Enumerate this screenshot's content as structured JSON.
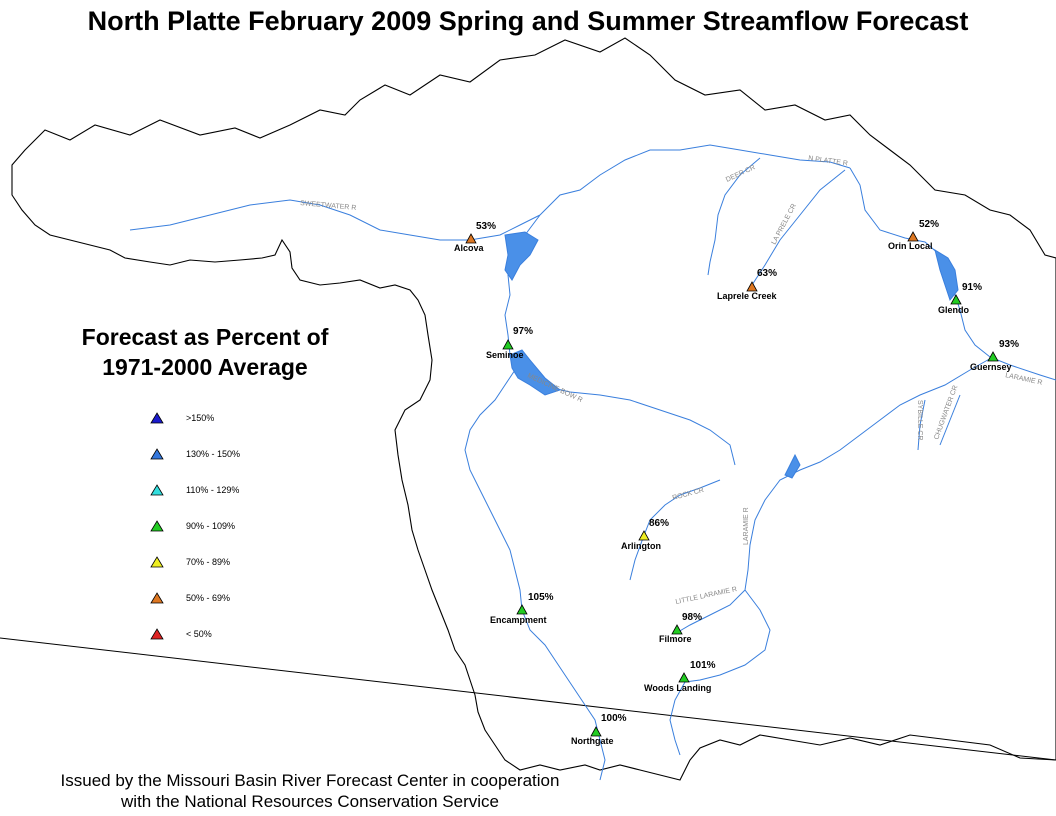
{
  "title": "North Platte February 2009 Spring and Summer Streamflow Forecast",
  "legend": {
    "title_line1": "Forecast as Percent of",
    "title_line2": "1971-2000 Average",
    "classes": [
      {
        "label": ">150%",
        "color": "#1a1acc"
      },
      {
        "label": "130% - 150%",
        "color": "#3377dd"
      },
      {
        "label": "110% - 129%",
        "color": "#33dddd"
      },
      {
        "label": "90% - 109%",
        "color": "#22cc22"
      },
      {
        "label": "70% - 89%",
        "color": "#eeee22"
      },
      {
        "label": "50% - 69%",
        "color": "#dd7722"
      },
      {
        "label": "< 50%",
        "color": "#dd2222"
      }
    ]
  },
  "stations": [
    {
      "name": "Alcova",
      "pct": "53%",
      "color": "#dd7722"
    },
    {
      "name": "Seminoe",
      "pct": "97%",
      "color": "#22cc22"
    },
    {
      "name": "Laprele Creek",
      "pct": "63%",
      "color": "#dd7722"
    },
    {
      "name": "Orin Local",
      "pct": "52%",
      "color": "#dd7722"
    },
    {
      "name": "Glendo",
      "pct": "91%",
      "color": "#22cc22"
    },
    {
      "name": "Guernsey",
      "pct": "93%",
      "color": "#22cc22"
    },
    {
      "name": "Arlington",
      "pct": "86%",
      "color": "#eeee22"
    },
    {
      "name": "Encampment",
      "pct": "105%",
      "color": "#22cc22"
    },
    {
      "name": "Filmore",
      "pct": "98%",
      "color": "#22cc22"
    },
    {
      "name": "Woods Landing",
      "pct": "101%",
      "color": "#22cc22"
    },
    {
      "name": "Northgate",
      "pct": "100%",
      "color": "#22cc22"
    }
  ],
  "rivers": [
    "SWEETWATER R",
    "DEER CR",
    "N PLATTE R",
    "LA PRELE CR",
    "MEDICINE BOW R",
    "SYBILLE CR",
    "CHUGWATER CR",
    "LARAMIE R",
    "ROCK CR",
    "LARAMIE R",
    "LITTLE LARAMIE R"
  ],
  "colors": {
    "river": "#3a7fdd",
    "boundary": "#000000",
    "lake": "#4a90e8"
  },
  "footer": {
    "line1": "Issued by the Missouri Basin River Forecast Center in cooperation",
    "line2": "with the National Resources Conservation Service"
  }
}
